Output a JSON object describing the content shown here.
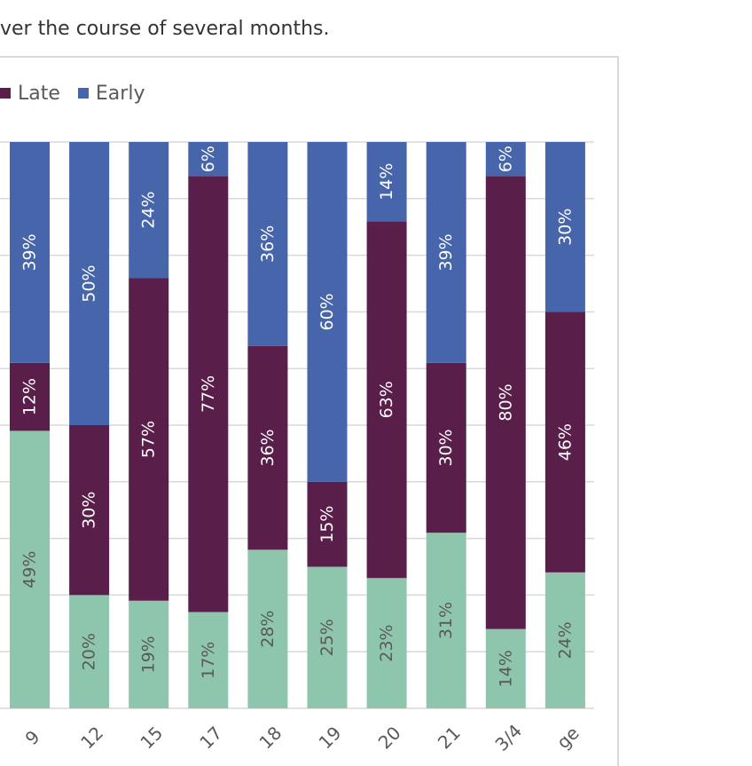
{
  "caption": "ver the course of several months.",
  "colors": {
    "on_time": "#8ec6ad",
    "late": "#5a1e4b",
    "early": "#4765ab",
    "grid": "#d9d9d9",
    "label_light": "#ffffff",
    "label_dark": "#595959"
  },
  "legend": [
    {
      "name": "Late",
      "color": "#5a1e4b"
    },
    {
      "name": "Early",
      "color": "#4765ab"
    }
  ],
  "chart_data": {
    "type": "bar",
    "stacked": true,
    "normalized": true,
    "orientation": "vertical",
    "categories": [
      "9",
      "12",
      "15",
      "17",
      "18",
      "19",
      "20",
      "21",
      "3/4",
      "ge"
    ],
    "series": [
      {
        "name": "",
        "values": [
          49,
          20,
          19,
          17,
          28,
          25,
          23,
          31,
          14,
          24
        ]
      },
      {
        "name": "Late",
        "values": [
          12,
          30,
          57,
          77,
          36,
          15,
          63,
          30,
          80,
          46
        ]
      },
      {
        "name": "Early",
        "values": [
          39,
          50,
          24,
          6,
          36,
          60,
          14,
          39,
          6,
          30
        ]
      }
    ],
    "value_labels": [
      [
        "49%",
        "20%",
        "19%",
        "17%",
        "28%",
        "25%",
        "23%",
        "31%",
        "14%",
        "24%"
      ],
      [
        "12%",
        "30%",
        "57%",
        "77%",
        "36%",
        "15%",
        "63%",
        "30%",
        "80%",
        "46%"
      ],
      [
        "39%",
        "50%",
        "24%",
        "6%",
        "36%",
        "60%",
        "14%",
        "39%",
        "6%",
        "30%"
      ]
    ],
    "ylim": [
      0,
      100
    ],
    "gridlines": true,
    "legend_position": "top-left"
  }
}
